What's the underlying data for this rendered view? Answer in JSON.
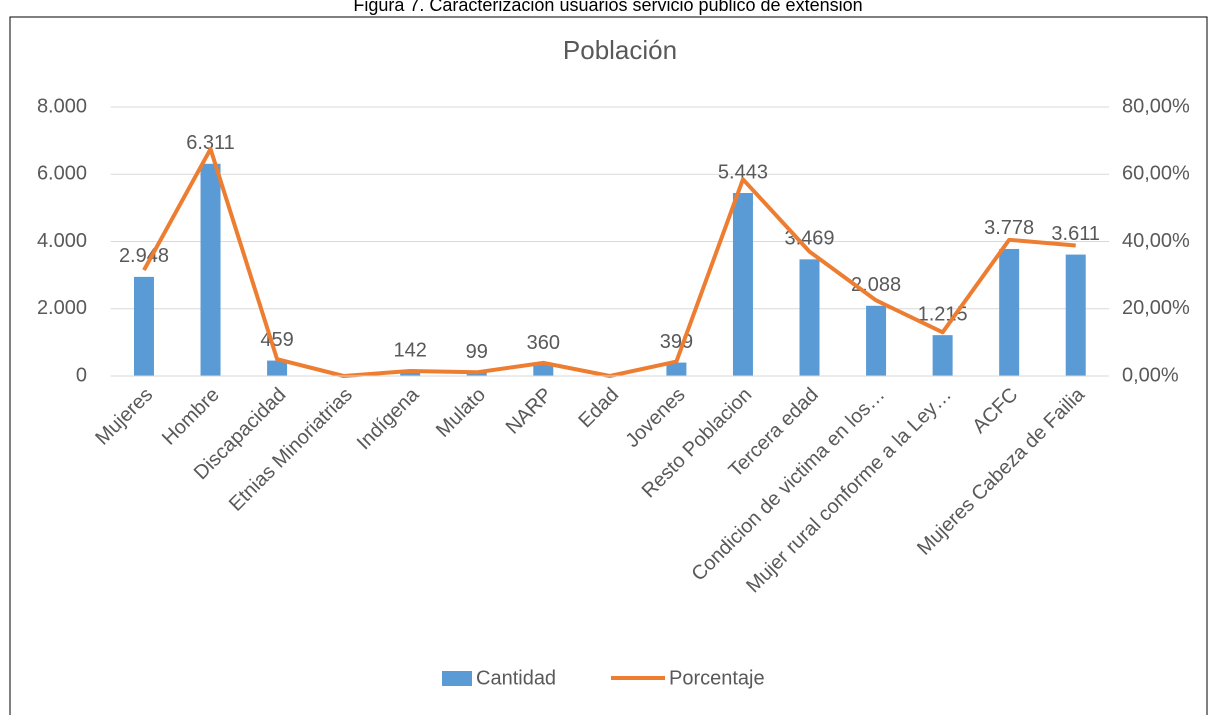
{
  "caption": "Figura 7. Caracterización usuarios servicio público de extensión",
  "chart_data": {
    "type": "bar_line",
    "title": "Población",
    "categories": [
      "Mujeres",
      "Hombre",
      "Discapacidad",
      "Etnias Minoriatrias",
      "Indígena",
      "Mulato",
      "NARP",
      "Edad",
      "Jovenes",
      "Resto Poblacion",
      "Tercera edad",
      "Condicion de victima en los…",
      "Mujer rural conforme a la Ley…",
      "ACFC",
      "Mujeres Cabeza de Failia"
    ],
    "series": [
      {
        "name": "Cantidad",
        "type": "bar",
        "color": "#5b9bd5",
        "values": [
          2948,
          6311,
          459,
          0,
          142,
          99,
          360,
          0,
          399,
          5443,
          3469,
          2088,
          1215,
          3778,
          3611
        ],
        "value_labels": [
          "2.948",
          "6.311",
          "459",
          null,
          "142",
          "99",
          "360",
          null,
          "399",
          "5.443",
          "3.469",
          "2.088",
          "1.215",
          "3.778",
          "3.611"
        ]
      },
      {
        "name": "Porcentaje",
        "type": "line",
        "axis": "y2",
        "color": "#ed7d31",
        "values": [
          31.5,
          67.5,
          5,
          0,
          1.5,
          1.1,
          3.9,
          0,
          4.3,
          58.5,
          37,
          22.5,
          13,
          40.5,
          38.8
        ]
      }
    ],
    "ylim": [
      0,
      8000
    ],
    "yticks": [
      0,
      {
        "value": 2000,
        "label": "2.000"
      },
      {
        "value": 4000,
        "label": "4.000"
      },
      {
        "value": 6000,
        "label": "6.000"
      },
      {
        "value": 8000,
        "label": "8.000"
      }
    ],
    "y2lim": [
      0,
      80
    ],
    "y2ticks": [
      {
        "value": 0,
        "label": "0,00%"
      },
      {
        "value": 20,
        "label": "20,00%"
      },
      {
        "value": 40,
        "label": "40,00%"
      },
      {
        "value": 60,
        "label": "60,00%"
      },
      {
        "value": 80,
        "label": "80,00%"
      }
    ],
    "grid": true,
    "legend": "bottom"
  }
}
